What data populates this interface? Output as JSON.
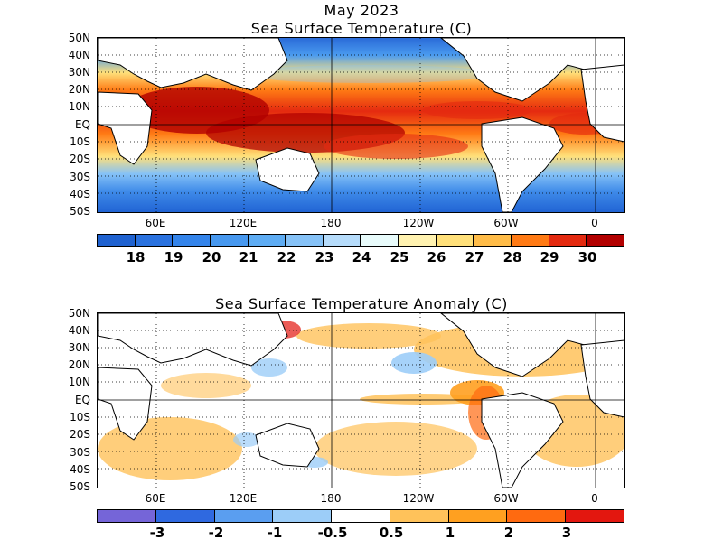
{
  "titles": {
    "date": "May 2023",
    "sst": "Sea Surface Temperature (C)",
    "anomaly": "Sea Surface Temperature Anomaly (C)"
  },
  "axes": {
    "latitudes": [
      "50N",
      "40N",
      "30N",
      "20N",
      "10N",
      "EQ",
      "10S",
      "20S",
      "30S",
      "40S",
      "50S"
    ],
    "longitudes": [
      "60E",
      "120E",
      "180",
      "120W",
      "60W",
      "0"
    ]
  },
  "sst_colorbar": {
    "labels": [
      "18",
      "19",
      "20",
      "21",
      "22",
      "23",
      "24",
      "25",
      "26",
      "27",
      "28",
      "29",
      "30"
    ],
    "colors": [
      "#1f62d0",
      "#2a72df",
      "#3484ea",
      "#4798ef",
      "#5eacf3",
      "#86c2f7",
      "#b6dcfb",
      "#e8fbfb",
      "#fff2b0",
      "#ffe07a",
      "#ffbc48",
      "#ff7a14",
      "#e42a10",
      "#b20000"
    ]
  },
  "anomaly_colorbar": {
    "labels": [
      "-3",
      "-2",
      "-1",
      "-0.5",
      "0.5",
      "1",
      "2",
      "3"
    ],
    "colors": [
      "#7565d8",
      "#2f69e0",
      "#5a9ef0",
      "#9ccdf8",
      "#ffffff",
      "#ffc25a",
      "#ffa020",
      "#ff6a10",
      "#e3170f"
    ]
  }
}
